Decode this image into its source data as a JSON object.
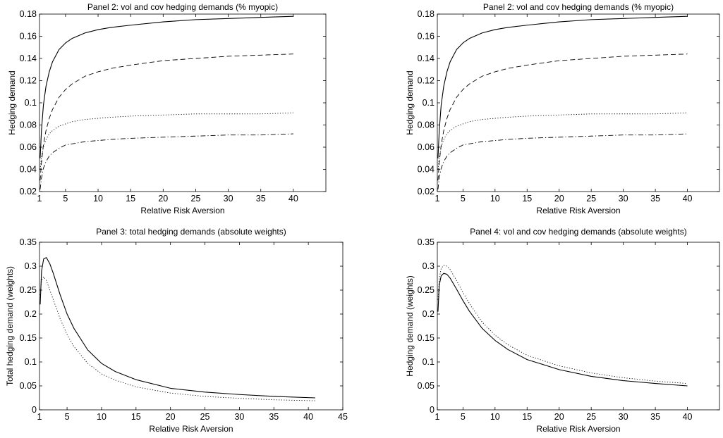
{
  "chart_data": [
    {
      "type": "line",
      "title": "Panel 2: vol and cov hedging demands (% myopic)",
      "xlabel": "Relative Risk Aversion",
      "ylabel": "Hedging demand",
      "xlim": [
        1,
        45
      ],
      "ylim": [
        0.02,
        0.18
      ],
      "xticks": [
        1,
        5,
        10,
        15,
        20,
        25,
        30,
        35,
        40
      ],
      "yticks": [
        0.02,
        0.04,
        0.06,
        0.08,
        0.1,
        0.12,
        0.14,
        0.16,
        0.18
      ],
      "ytick_labels": [
        "0.02",
        "0.04",
        "0.06",
        "0.08",
        "0.1",
        "0.12",
        "0.14",
        "0.16",
        "0.18"
      ],
      "grid": false,
      "legend": "none",
      "x": [
        1.1,
        1.3,
        1.6,
        2,
        2.5,
        3,
        4,
        5,
        6,
        8,
        10,
        12,
        15,
        20,
        25,
        30,
        35,
        40
      ],
      "series": [
        {
          "style": "solid",
          "values": [
            0.05,
            0.075,
            0.098,
            0.115,
            0.128,
            0.137,
            0.148,
            0.154,
            0.158,
            0.163,
            0.166,
            0.168,
            0.17,
            0.173,
            0.175,
            0.176,
            0.177,
            0.178
          ]
        },
        {
          "style": "dashed",
          "values": [
            0.03,
            0.046,
            0.062,
            0.075,
            0.086,
            0.094,
            0.105,
            0.112,
            0.117,
            0.124,
            0.128,
            0.131,
            0.134,
            0.138,
            0.14,
            0.142,
            0.143,
            0.144
          ]
        },
        {
          "style": "dotted",
          "values": [
            0.04,
            0.051,
            0.06,
            0.067,
            0.072,
            0.075,
            0.079,
            0.081,
            0.083,
            0.085,
            0.086,
            0.087,
            0.088,
            0.089,
            0.09,
            0.09,
            0.09,
            0.091
          ]
        },
        {
          "style": "dashdot",
          "values": [
            0.022,
            0.032,
            0.041,
            0.047,
            0.052,
            0.055,
            0.059,
            0.062,
            0.063,
            0.065,
            0.066,
            0.067,
            0.068,
            0.069,
            0.07,
            0.071,
            0.071,
            0.072
          ]
        }
      ]
    },
    {
      "type": "line",
      "title": "Panel 2: vol and cov hedging demands (% myopic)",
      "xlabel": "Relative Risk Aversion",
      "ylabel": "Hedging demand",
      "xlim": [
        1,
        45
      ],
      "ylim": [
        0.02,
        0.18
      ],
      "xticks": [
        1,
        5,
        10,
        15,
        20,
        25,
        30,
        35,
        40
      ],
      "yticks": [
        0.02,
        0.04,
        0.06,
        0.08,
        0.1,
        0.12,
        0.14,
        0.16,
        0.18
      ],
      "ytick_labels": [
        "0.02",
        "0.04",
        "0.06",
        "0.08",
        "0.1",
        "0.12",
        "0.14",
        "0.16",
        "0.18"
      ],
      "grid": false,
      "legend": "none",
      "x": [
        1.1,
        1.3,
        1.6,
        2,
        2.5,
        3,
        4,
        5,
        6,
        8,
        10,
        12,
        15,
        20,
        25,
        30,
        35,
        40
      ],
      "series": [
        {
          "style": "solid",
          "values": [
            0.05,
            0.075,
            0.098,
            0.115,
            0.128,
            0.137,
            0.148,
            0.154,
            0.158,
            0.163,
            0.166,
            0.168,
            0.17,
            0.173,
            0.175,
            0.176,
            0.177,
            0.178
          ]
        },
        {
          "style": "dashed",
          "values": [
            0.03,
            0.046,
            0.062,
            0.075,
            0.086,
            0.094,
            0.105,
            0.112,
            0.117,
            0.124,
            0.128,
            0.131,
            0.134,
            0.138,
            0.14,
            0.142,
            0.143,
            0.144
          ]
        },
        {
          "style": "dotted",
          "values": [
            0.04,
            0.051,
            0.06,
            0.067,
            0.072,
            0.075,
            0.079,
            0.081,
            0.083,
            0.085,
            0.086,
            0.087,
            0.088,
            0.089,
            0.09,
            0.09,
            0.09,
            0.091
          ]
        },
        {
          "style": "dashdot",
          "values": [
            0.022,
            0.032,
            0.041,
            0.047,
            0.052,
            0.055,
            0.059,
            0.062,
            0.063,
            0.065,
            0.066,
            0.067,
            0.068,
            0.069,
            0.07,
            0.071,
            0.071,
            0.072
          ]
        }
      ]
    },
    {
      "type": "line",
      "title": "Panel 3: total hedging demands (absolute weights)",
      "xlabel": "Relative Risk Aversion",
      "ylabel": "Total hedging demand (weights)",
      "xlim": [
        1,
        45
      ],
      "ylim": [
        0,
        0.35
      ],
      "xticks": [
        1,
        5,
        10,
        15,
        20,
        25,
        30,
        35,
        40,
        45
      ],
      "yticks": [
        0,
        0.05,
        0.1,
        0.15,
        0.2,
        0.25,
        0.3,
        0.35
      ],
      "ytick_labels": [
        "0",
        "0.05",
        "0.1",
        "0.15",
        "0.2",
        "0.25",
        "0.3",
        "0.35"
      ],
      "grid": false,
      "legend": "none",
      "x": [
        1.1,
        1.3,
        1.6,
        2,
        2.5,
        3,
        4,
        5,
        6,
        8,
        10,
        12,
        15,
        20,
        25,
        30,
        35,
        41
      ],
      "series": [
        {
          "style": "solid",
          "values": [
            0.22,
            0.29,
            0.315,
            0.318,
            0.305,
            0.285,
            0.24,
            0.2,
            0.17,
            0.125,
            0.097,
            0.08,
            0.063,
            0.045,
            0.037,
            0.032,
            0.028,
            0.025
          ]
        },
        {
          "style": "dotted",
          "values": [
            0.24,
            0.27,
            0.278,
            0.27,
            0.25,
            0.23,
            0.19,
            0.157,
            0.132,
            0.097,
            0.075,
            0.062,
            0.048,
            0.035,
            0.028,
            0.024,
            0.021,
            0.019
          ]
        }
      ]
    },
    {
      "type": "line",
      "title": "Panel 4: vol and cov hedging demands (absolute weights)",
      "xlabel": "Relative Risk Aversion",
      "ylabel": "Hedging demand (weights)",
      "xlim": [
        1,
        45
      ],
      "ylim": [
        0,
        0.35
      ],
      "xticks": [
        1,
        5,
        10,
        15,
        20,
        25,
        30,
        35,
        40
      ],
      "yticks": [
        0,
        0.05,
        0.1,
        0.15,
        0.2,
        0.25,
        0.3,
        0.35
      ],
      "ytick_labels": [
        "0",
        "0.05",
        "0.1",
        "0.15",
        "0.2",
        "0.25",
        "0.3",
        "0.35"
      ],
      "grid": false,
      "legend": "none",
      "x": [
        1.1,
        1.3,
        1.6,
        2,
        2.5,
        3,
        4,
        5,
        6,
        8,
        10,
        12,
        15,
        20,
        25,
        30,
        35,
        40
      ],
      "series": [
        {
          "style": "solid",
          "values": [
            0.205,
            0.26,
            0.28,
            0.285,
            0.283,
            0.275,
            0.252,
            0.228,
            0.206,
            0.17,
            0.145,
            0.126,
            0.105,
            0.084,
            0.07,
            0.061,
            0.055,
            0.05
          ]
        },
        {
          "style": "dotted",
          "values": [
            0.23,
            0.275,
            0.295,
            0.302,
            0.3,
            0.293,
            0.27,
            0.245,
            0.222,
            0.183,
            0.156,
            0.136,
            0.114,
            0.092,
            0.077,
            0.067,
            0.06,
            0.055
          ]
        }
      ]
    }
  ]
}
